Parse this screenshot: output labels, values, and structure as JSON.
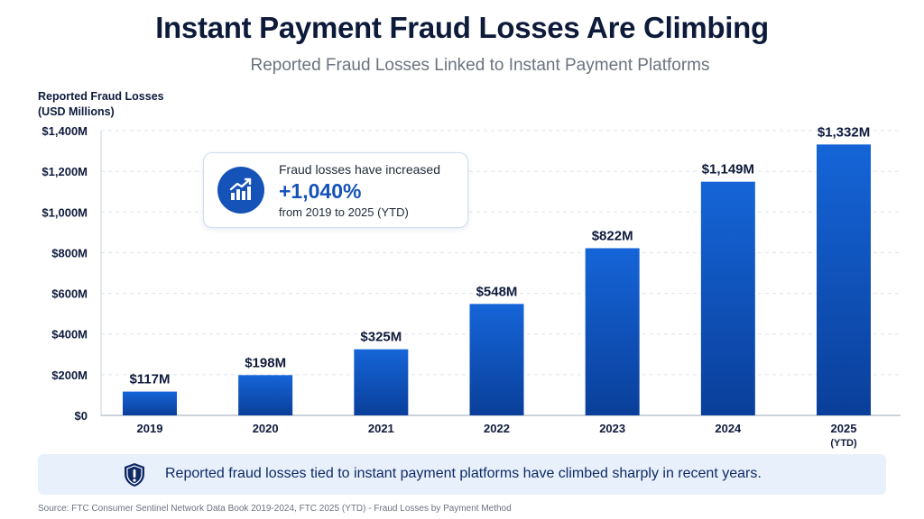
{
  "title": "Instant Payment Fraud Losses Are Climbing",
  "subtitle": "Reported Fraud Losses Linked to Instant Payment Platforms",
  "chart_data": {
    "type": "bar",
    "ylabel": [
      "Reported Fraud Losses",
      "(USD Millions)"
    ],
    "categories": [
      "2019",
      "2020",
      "2021",
      "2022",
      "2023",
      "2024",
      "2025"
    ],
    "category_sublabels": [
      "",
      "",
      "",
      "",
      "",
      "",
      "(YTD)"
    ],
    "values": [
      117,
      198,
      325,
      548,
      822,
      1149,
      1332
    ],
    "data_labels": [
      "$117M",
      "$198M",
      "$325M",
      "$548M",
      "$822M",
      "$1,149M",
      "$1,332M"
    ],
    "ylim": [
      0,
      1400
    ],
    "yticks": [
      0,
      200,
      400,
      600,
      800,
      1000,
      1200,
      1400
    ],
    "ytick_labels": [
      "$0",
      "$200M",
      "$400M",
      "$600M",
      "$800M",
      "$1,000M",
      "$1,200M",
      "$1,400M"
    ],
    "grid": true,
    "bar_color_top": "#1565d8",
    "bar_color_bottom": "#0a3f9a"
  },
  "callout": {
    "line1": "Fraud losses have increased",
    "value": "+1,040%",
    "line3": "from 2019 to 2025 (YTD)",
    "icon": "trending-up-icon",
    "accent": "#1553b8"
  },
  "banner": {
    "text": "Reported fraud losses tied to instant payment platforms have climbed sharply in recent years.",
    "icon": "shield-alert-icon"
  },
  "source": "Source: FTC Consumer Sentinel Network Data Book 2019-2024, FTC 2025 (YTD) - Fraud Losses by Payment Method"
}
